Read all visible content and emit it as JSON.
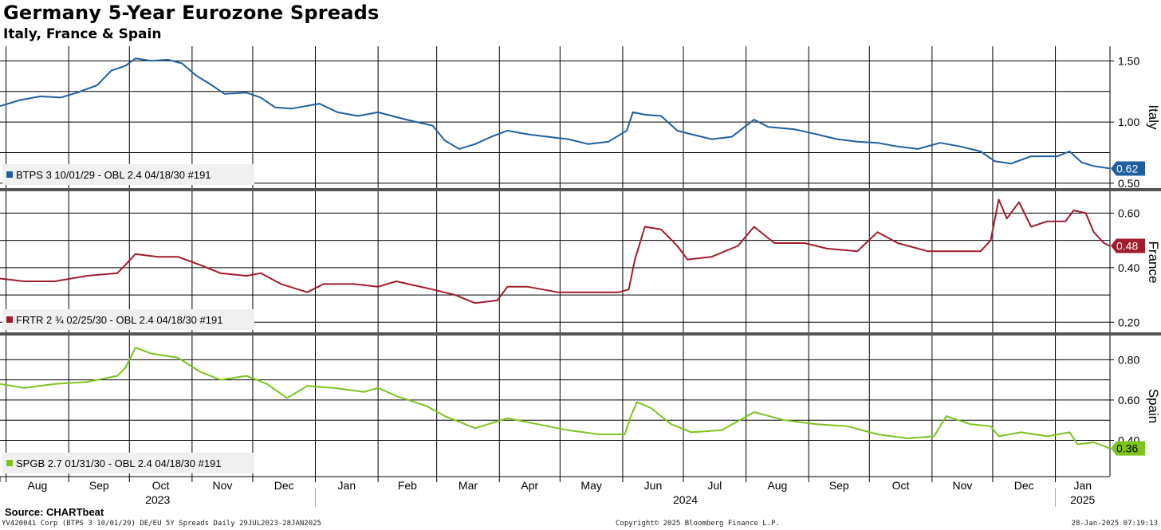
{
  "header": {
    "title": "Germany 5-Year Eurozone Spreads",
    "subtitle": "Italy, France & Spain"
  },
  "source_label": "Source: CHARTbeat",
  "footer": {
    "left": "YV420041 Corp (BTPS 3 10/01/29) DE/EU 5Y Spreads  Daily 29JUL2023-28JAN2025",
    "center": "Copyright© 2025 Bloomberg Finance L.P.",
    "right": "28-Jan-2025 07:19:13"
  },
  "chart_data": {
    "type": "line",
    "x_months": [
      "Aug",
      "Sep",
      "Oct",
      "Nov",
      "Dec",
      "Jan",
      "Feb",
      "Mar",
      "Apr",
      "May",
      "Jun",
      "Jul",
      "Aug",
      "Sep",
      "Oct",
      "Nov",
      "Dec",
      "Jan"
    ],
    "x_years": [
      "2023",
      "2024",
      "2025"
    ],
    "x_range": [
      "2023-07-29",
      "2025-01-28"
    ],
    "grid": true,
    "panels": [
      {
        "name": "Italy",
        "axis_label": "Italy",
        "legend": "BTPS 3 10/01/29 - OBL 2.4 04/18/30 #191",
        "color": "#1f5fa0",
        "last_value": "0.62",
        "yticks": [
          "1.50",
          "1.00",
          "0.50"
        ],
        "ylim": [
          0.46,
          1.62
        ],
        "points": [
          [
            "2023-07-29",
            1.13
          ],
          [
            "2023-08-08",
            1.18
          ],
          [
            "2023-08-18",
            1.21
          ],
          [
            "2023-08-28",
            1.2
          ],
          [
            "2023-09-05",
            1.24
          ],
          [
            "2023-09-15",
            1.3
          ],
          [
            "2023-09-22",
            1.42
          ],
          [
            "2023-09-29",
            1.46
          ],
          [
            "2023-10-04",
            1.52
          ],
          [
            "2023-10-12",
            1.5
          ],
          [
            "2023-10-20",
            1.51
          ],
          [
            "2023-10-27",
            1.48
          ],
          [
            "2023-11-03",
            1.38
          ],
          [
            "2023-11-10",
            1.31
          ],
          [
            "2023-11-17",
            1.23
          ],
          [
            "2023-11-28",
            1.24
          ],
          [
            "2023-12-05",
            1.2
          ],
          [
            "2023-12-12",
            1.12
          ],
          [
            "2023-12-20",
            1.11
          ],
          [
            "2024-01-03",
            1.15
          ],
          [
            "2024-01-12",
            1.08
          ],
          [
            "2024-01-22",
            1.05
          ],
          [
            "2024-02-01",
            1.08
          ],
          [
            "2024-02-15",
            1.02
          ],
          [
            "2024-02-28",
            0.97
          ],
          [
            "2024-03-05",
            0.85
          ],
          [
            "2024-03-12",
            0.78
          ],
          [
            "2024-03-20",
            0.82
          ],
          [
            "2024-03-28",
            0.88
          ],
          [
            "2024-04-05",
            0.93
          ],
          [
            "2024-04-15",
            0.9
          ],
          [
            "2024-04-25",
            0.88
          ],
          [
            "2024-05-05",
            0.86
          ],
          [
            "2024-05-15",
            0.82
          ],
          [
            "2024-05-25",
            0.84
          ],
          [
            "2024-06-03",
            0.93
          ],
          [
            "2024-06-06",
            1.08
          ],
          [
            "2024-06-12",
            1.06
          ],
          [
            "2024-06-20",
            1.05
          ],
          [
            "2024-06-28",
            0.93
          ],
          [
            "2024-07-05",
            0.9
          ],
          [
            "2024-07-15",
            0.86
          ],
          [
            "2024-07-25",
            0.88
          ],
          [
            "2024-08-05",
            1.02
          ],
          [
            "2024-08-12",
            0.96
          ],
          [
            "2024-08-25",
            0.94
          ],
          [
            "2024-09-05",
            0.9
          ],
          [
            "2024-09-15",
            0.86
          ],
          [
            "2024-09-25",
            0.84
          ],
          [
            "2024-10-05",
            0.83
          ],
          [
            "2024-10-15",
            0.8
          ],
          [
            "2024-10-25",
            0.78
          ],
          [
            "2024-11-05",
            0.83
          ],
          [
            "2024-11-15",
            0.8
          ],
          [
            "2024-11-25",
            0.76
          ],
          [
            "2024-12-02",
            0.68
          ],
          [
            "2024-12-10",
            0.66
          ],
          [
            "2024-12-20",
            0.72
          ],
          [
            "2025-01-02",
            0.72
          ],
          [
            "2025-01-08",
            0.76
          ],
          [
            "2025-01-14",
            0.67
          ],
          [
            "2025-01-20",
            0.64
          ],
          [
            "2025-01-28",
            0.62
          ]
        ]
      },
      {
        "name": "France",
        "axis_label": "France",
        "legend": "FRTR 2 ¾ 02/25/30 - OBL 2.4 04/18/30 #191",
        "color": "#a01c2c",
        "last_value": "0.48",
        "yticks": [
          "0.60",
          "0.40",
          "0.20"
        ],
        "ylim": [
          0.16,
          0.68
        ],
        "points": [
          [
            "2023-07-29",
            0.36
          ],
          [
            "2023-08-10",
            0.35
          ],
          [
            "2023-08-25",
            0.35
          ],
          [
            "2023-09-10",
            0.37
          ],
          [
            "2023-09-25",
            0.38
          ],
          [
            "2023-09-29",
            0.41
          ],
          [
            "2023-10-04",
            0.45
          ],
          [
            "2023-10-15",
            0.44
          ],
          [
            "2023-10-25",
            0.44
          ],
          [
            "2023-11-05",
            0.41
          ],
          [
            "2023-11-15",
            0.38
          ],
          [
            "2023-11-28",
            0.37
          ],
          [
            "2023-12-05",
            0.38
          ],
          [
            "2023-12-15",
            0.34
          ],
          [
            "2023-12-28",
            0.31
          ],
          [
            "2024-01-05",
            0.34
          ],
          [
            "2024-01-20",
            0.34
          ],
          [
            "2024-02-01",
            0.33
          ],
          [
            "2024-02-10",
            0.35
          ],
          [
            "2024-02-28",
            0.32
          ],
          [
            "2024-03-10",
            0.3
          ],
          [
            "2024-03-20",
            0.27
          ],
          [
            "2024-03-31",
            0.28
          ],
          [
            "2024-04-05",
            0.33
          ],
          [
            "2024-04-15",
            0.33
          ],
          [
            "2024-04-30",
            0.31
          ],
          [
            "2024-05-10",
            0.31
          ],
          [
            "2024-05-30",
            0.31
          ],
          [
            "2024-06-04",
            0.32
          ],
          [
            "2024-06-07",
            0.43
          ],
          [
            "2024-06-12",
            0.55
          ],
          [
            "2024-06-20",
            0.54
          ],
          [
            "2024-06-28",
            0.48
          ],
          [
            "2024-07-03",
            0.43
          ],
          [
            "2024-07-15",
            0.44
          ],
          [
            "2024-07-28",
            0.48
          ],
          [
            "2024-08-05",
            0.55
          ],
          [
            "2024-08-15",
            0.49
          ],
          [
            "2024-08-30",
            0.49
          ],
          [
            "2024-09-10",
            0.47
          ],
          [
            "2024-09-25",
            0.46
          ],
          [
            "2024-10-05",
            0.53
          ],
          [
            "2024-10-15",
            0.49
          ],
          [
            "2024-10-30",
            0.46
          ],
          [
            "2024-11-10",
            0.46
          ],
          [
            "2024-11-25",
            0.46
          ],
          [
            "2024-11-30",
            0.5
          ],
          [
            "2024-12-04",
            0.65
          ],
          [
            "2024-12-08",
            0.58
          ],
          [
            "2024-12-14",
            0.64
          ],
          [
            "2024-12-20",
            0.55
          ],
          [
            "2024-12-28",
            0.57
          ],
          [
            "2025-01-06",
            0.57
          ],
          [
            "2025-01-10",
            0.61
          ],
          [
            "2025-01-16",
            0.6
          ],
          [
            "2025-01-20",
            0.53
          ],
          [
            "2025-01-25",
            0.49
          ],
          [
            "2025-01-28",
            0.48
          ]
        ]
      },
      {
        "name": "Spain",
        "axis_label": "Spain",
        "legend": "SPGB 2.7 01/31/30 - OBL 2.4 04/18/30 #191",
        "color": "#7dc41f",
        "last_value": "0.36",
        "yticks": [
          "0.80",
          "0.60",
          "0.40"
        ],
        "ylim": [
          0.22,
          0.92
        ],
        "points": [
          [
            "2023-07-29",
            0.68
          ],
          [
            "2023-08-10",
            0.66
          ],
          [
            "2023-08-25",
            0.68
          ],
          [
            "2023-09-10",
            0.69
          ],
          [
            "2023-09-25",
            0.72
          ],
          [
            "2023-09-29",
            0.76
          ],
          [
            "2023-10-04",
            0.86
          ],
          [
            "2023-10-12",
            0.83
          ],
          [
            "2023-10-25",
            0.81
          ],
          [
            "2023-11-05",
            0.74
          ],
          [
            "2023-11-15",
            0.7
          ],
          [
            "2023-11-28",
            0.72
          ],
          [
            "2023-12-08",
            0.68
          ],
          [
            "2023-12-18",
            0.61
          ],
          [
            "2023-12-28",
            0.67
          ],
          [
            "2024-01-10",
            0.66
          ],
          [
            "2024-01-25",
            0.64
          ],
          [
            "2024-02-01",
            0.66
          ],
          [
            "2024-02-10",
            0.62
          ],
          [
            "2024-02-25",
            0.57
          ],
          [
            "2024-03-05",
            0.52
          ],
          [
            "2024-03-20",
            0.46
          ],
          [
            "2024-04-05",
            0.51
          ],
          [
            "2024-04-20",
            0.48
          ],
          [
            "2024-05-05",
            0.45
          ],
          [
            "2024-05-20",
            0.43
          ],
          [
            "2024-06-02",
            0.43
          ],
          [
            "2024-06-05",
            0.52
          ],
          [
            "2024-06-08",
            0.59
          ],
          [
            "2024-06-15",
            0.56
          ],
          [
            "2024-06-25",
            0.48
          ],
          [
            "2024-07-05",
            0.44
          ],
          [
            "2024-07-20",
            0.45
          ],
          [
            "2024-08-05",
            0.54
          ],
          [
            "2024-08-20",
            0.5
          ],
          [
            "2024-09-05",
            0.48
          ],
          [
            "2024-09-20",
            0.47
          ],
          [
            "2024-10-05",
            0.43
          ],
          [
            "2024-10-20",
            0.41
          ],
          [
            "2024-11-02",
            0.42
          ],
          [
            "2024-11-08",
            0.52
          ],
          [
            "2024-11-20",
            0.48
          ],
          [
            "2024-11-30",
            0.47
          ],
          [
            "2024-12-04",
            0.42
          ],
          [
            "2024-12-15",
            0.44
          ],
          [
            "2024-12-28",
            0.42
          ],
          [
            "2025-01-08",
            0.44
          ],
          [
            "2025-01-12",
            0.38
          ],
          [
            "2025-01-20",
            0.39
          ],
          [
            "2025-01-28",
            0.36
          ]
        ]
      }
    ]
  }
}
